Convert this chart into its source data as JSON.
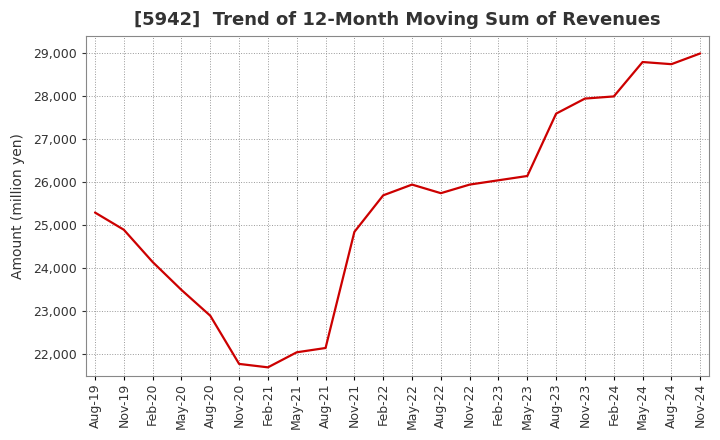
{
  "title": "[5942]  Trend of 12-Month Moving Sum of Revenues",
  "ylabel": "Amount (million yen)",
  "background_color": "#ffffff",
  "plot_bg_color": "#ffffff",
  "line_color": "#cc0000",
  "grid_color": "#999999",
  "x_labels": [
    "Aug-19",
    "Nov-19",
    "Feb-20",
    "May-20",
    "Aug-20",
    "Nov-20",
    "Feb-21",
    "May-21",
    "Aug-21",
    "Nov-21",
    "Feb-22",
    "May-22",
    "Aug-22",
    "Nov-22",
    "Feb-23",
    "May-23",
    "Aug-23",
    "Nov-23",
    "Feb-24",
    "May-24",
    "Aug-24",
    "Nov-24"
  ],
  "values": [
    25300,
    24900,
    24150,
    23500,
    22900,
    21780,
    21700,
    22050,
    22150,
    24850,
    25700,
    25950,
    25750,
    25950,
    26050,
    26150,
    27600,
    27950,
    28000,
    28800,
    28750,
    29000
  ],
  "ylim": [
    21500,
    29400
  ],
  "yticks": [
    22000,
    23000,
    24000,
    25000,
    26000,
    27000,
    28000,
    29000
  ],
  "title_fontsize": 13,
  "label_fontsize": 10,
  "tick_fontsize": 9,
  "title_color": "#333333"
}
